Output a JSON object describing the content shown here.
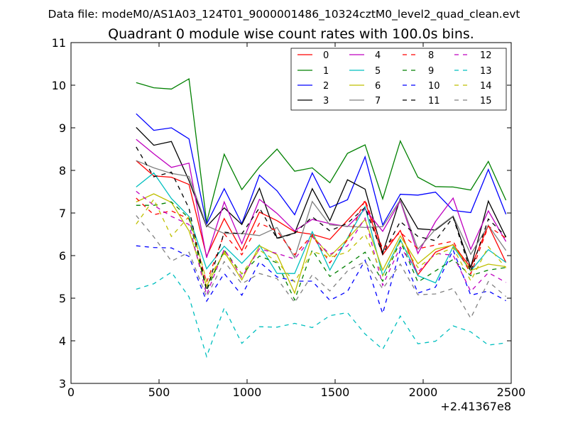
{
  "chart_data": {
    "type": "line",
    "suptitle": "Data file: modeM0/AS1A03_124T01_9000001486_10324cztM0_level2_quad_clean.evt",
    "title": "Quadrant 0 module wise count rates with 100.0s bins.",
    "xlabel": "",
    "ylabel": "",
    "x_offset_label": "+2.41367e8",
    "xlim": [
      0,
      2500
    ],
    "ylim": [
      3,
      11
    ],
    "xticks": [
      0,
      500,
      1000,
      1500,
      2000,
      2500
    ],
    "yticks": [
      3,
      4,
      5,
      6,
      7,
      8,
      9,
      10,
      11
    ],
    "grid": false,
    "legend_position": "top-right",
    "x": [
      370,
      470,
      570,
      670,
      770,
      870,
      970,
      1070,
      1170,
      1270,
      1370,
      1470,
      1570,
      1670,
      1770,
      1870,
      1970,
      2070,
      2170,
      2270,
      2370,
      2470
    ],
    "series": [
      {
        "name": "0",
        "color": "#ff0000",
        "dash": "solid",
        "values": [
          8.23,
          7.87,
          7.84,
          7.67,
          5.98,
          6.87,
          6.12,
          7.02,
          6.82,
          6.56,
          6.5,
          6.38,
          6.83,
          7.27,
          6.02,
          6.59,
          5.55,
          6.08,
          6.26,
          5.72,
          6.71,
          5.84
        ]
      },
      {
        "name": "1",
        "color": "#008000",
        "dash": "solid",
        "values": [
          10.06,
          9.94,
          9.91,
          10.15,
          6.78,
          8.38,
          7.55,
          8.08,
          8.5,
          7.98,
          8.06,
          7.71,
          8.4,
          8.6,
          7.33,
          8.69,
          7.84,
          7.62,
          7.61,
          7.54,
          8.21,
          7.3
        ]
      },
      {
        "name": "2",
        "color": "#0000ff",
        "dash": "solid",
        "values": [
          9.33,
          8.94,
          9.0,
          8.74,
          6.74,
          7.57,
          6.75,
          7.89,
          7.52,
          6.96,
          7.94,
          7.13,
          7.31,
          8.32,
          6.72,
          7.44,
          7.42,
          7.49,
          7.06,
          7.01,
          8.02,
          6.97
        ]
      },
      {
        "name": "3",
        "color": "#000000",
        "dash": "solid",
        "values": [
          9.01,
          8.59,
          8.68,
          7.76,
          6.68,
          7.12,
          6.73,
          7.58,
          6.41,
          6.53,
          7.57,
          6.82,
          7.78,
          7.56,
          6.06,
          7.34,
          6.63,
          6.6,
          6.92,
          5.72,
          7.28,
          6.43
        ]
      },
      {
        "name": "4",
        "color": "#bf00bf",
        "dash": "solid",
        "values": [
          8.73,
          8.39,
          8.07,
          8.17,
          5.95,
          7.26,
          6.28,
          7.32,
          6.99,
          6.58,
          6.85,
          6.75,
          6.68,
          7.09,
          6.57,
          7.28,
          6.05,
          6.8,
          7.35,
          6.15,
          7.05,
          6.33
        ]
      },
      {
        "name": "5",
        "color": "#00bfbf",
        "dash": "solid",
        "values": [
          7.61,
          7.94,
          7.34,
          6.92,
          5.69,
          6.22,
          5.82,
          6.25,
          5.58,
          5.58,
          6.56,
          5.66,
          6.41,
          7.15,
          5.53,
          6.38,
          5.53,
          5.36,
          6.21,
          5.64,
          6.14,
          5.84
        ]
      },
      {
        "name": "6",
        "color": "#bfbf00",
        "dash": "solid",
        "values": [
          7.26,
          7.45,
          7.25,
          6.58,
          5.28,
          6.09,
          5.43,
          6.23,
          6.02,
          5.12,
          6.48,
          5.98,
          6.39,
          6.85,
          5.66,
          6.46,
          5.81,
          6.15,
          6.25,
          5.65,
          5.8,
          5.74
        ]
      },
      {
        "name": "7",
        "color": "#808080",
        "dash": "solid",
        "values": [
          8.23,
          8.06,
          7.93,
          7.86,
          6.7,
          6.52,
          6.52,
          6.47,
          6.66,
          5.95,
          7.27,
          6.72,
          6.69,
          6.66,
          6.68,
          7.31,
          6.15,
          6.62,
          6.93,
          6.03,
          6.71,
          6.12
        ]
      },
      {
        "name": "8",
        "color": "#ff0000",
        "dash": "dashed",
        "values": [
          7.35,
          6.96,
          7.05,
          6.86,
          5.37,
          6.51,
          6.02,
          6.76,
          6.58,
          6.02,
          6.48,
          5.83,
          6.37,
          7.31,
          6.15,
          6.55,
          6.16,
          6.25,
          6.34,
          5.57,
          6.69,
          6.41
        ]
      },
      {
        "name": "9",
        "color": "#008000",
        "dash": "dashed",
        "values": [
          7.18,
          7.18,
          7.26,
          6.88,
          5.18,
          6.13,
          5.57,
          5.99,
          5.83,
          4.96,
          6.13,
          5.51,
          5.79,
          6.08,
          5.4,
          6.34,
          5.38,
          5.64,
          5.91,
          5.53,
          5.66,
          5.72
        ]
      },
      {
        "name": "10",
        "color": "#0000ff",
        "dash": "dashed",
        "values": [
          6.23,
          6.19,
          6.18,
          5.98,
          4.93,
          5.58,
          5.07,
          5.85,
          5.5,
          5.4,
          5.4,
          4.95,
          5.16,
          5.89,
          4.64,
          6.14,
          5.12,
          5.26,
          6.13,
          5.07,
          5.17,
          4.94
        ]
      },
      {
        "name": "11",
        "color": "#000000",
        "dash": "dashed",
        "values": [
          8.55,
          7.85,
          7.96,
          7.11,
          5.18,
          6.55,
          6.51,
          7.12,
          6.4,
          6.52,
          6.91,
          6.58,
          6.76,
          7.13,
          6.03,
          6.8,
          6.45,
          6.35,
          6.9,
          5.62,
          6.86,
          6.45
        ]
      },
      {
        "name": "12",
        "color": "#bf00bf",
        "dash": "dashed",
        "values": [
          7.51,
          7.18,
          6.92,
          6.73,
          5.08,
          6.15,
          5.49,
          6.16,
          6.05,
          5.92,
          6.44,
          6.03,
          6.23,
          6.88,
          5.3,
          6.2,
          5.61,
          6.05,
          6.01,
          5.16,
          5.6,
          5.37
        ]
      },
      {
        "name": "13",
        "color": "#00bfbf",
        "dash": "dashed",
        "values": [
          5.21,
          5.34,
          5.61,
          5.03,
          3.63,
          4.77,
          3.94,
          4.33,
          4.32,
          4.41,
          4.31,
          4.59,
          4.66,
          4.16,
          3.8,
          4.58,
          3.93,
          3.99,
          4.35,
          4.21,
          3.9,
          3.95
        ]
      },
      {
        "name": "14",
        "color": "#bfbf00",
        "dash": "dashed",
        "values": [
          6.74,
          7.32,
          6.45,
          6.92,
          5.4,
          6.05,
          5.58,
          6.13,
          5.86,
          5.38,
          6.1,
          5.96,
          6.08,
          6.5,
          5.53,
          6.34,
          5.72,
          6.02,
          6.18,
          5.41,
          6.21,
          5.71
        ]
      },
      {
        "name": "15",
        "color": "#808080",
        "dash": "dashed",
        "values": [
          6.94,
          6.44,
          5.87,
          6.08,
          5.03,
          5.86,
          5.34,
          5.58,
          5.46,
          4.9,
          5.55,
          5.17,
          5.64,
          5.86,
          5.22,
          5.8,
          5.08,
          5.1,
          5.23,
          4.53,
          5.39,
          5.04
        ]
      }
    ]
  }
}
